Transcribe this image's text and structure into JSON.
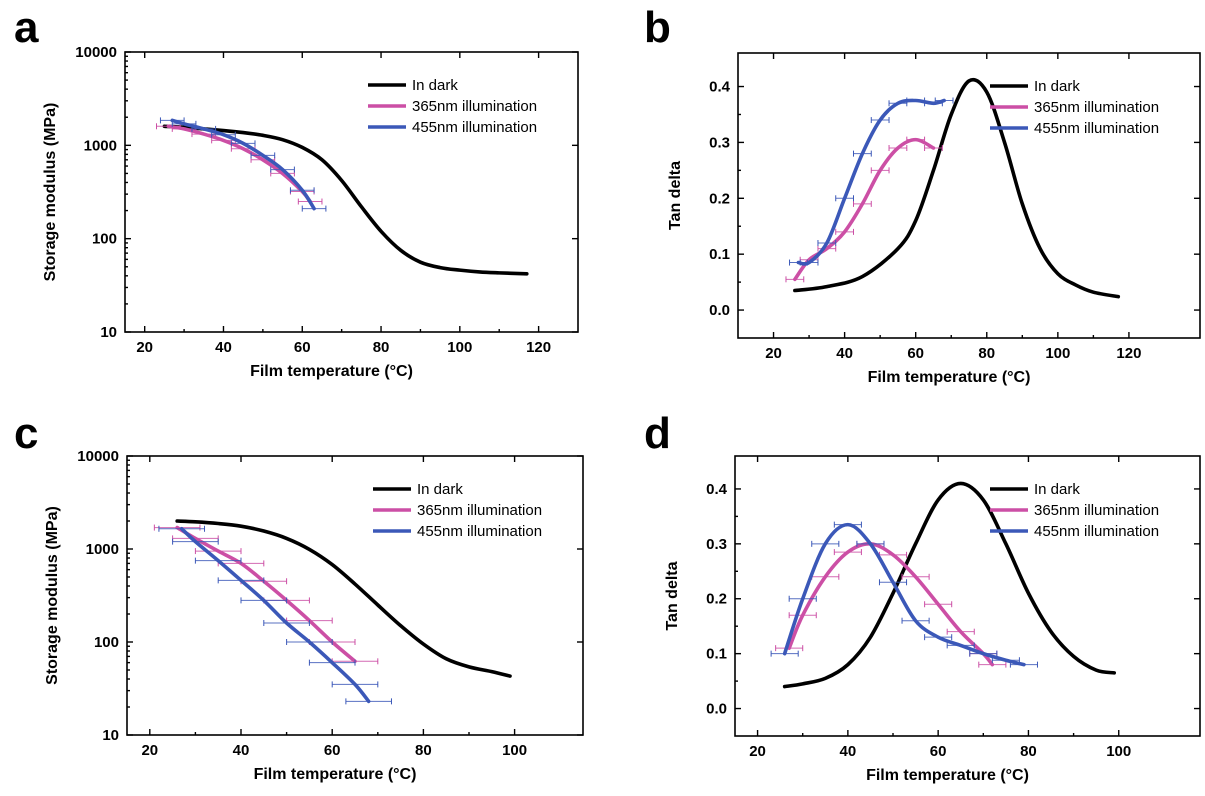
{
  "colors": {
    "dark": "#000000",
    "uv365": "#cc4fa5",
    "blue455": "#3b58b8"
  },
  "chart_data": [
    {
      "panel": "a",
      "type": "line",
      "xlabel": "Film temperature (°C)",
      "ylabel": "Storage modulus (MPa)",
      "xlim": [
        15,
        130
      ],
      "ylim": [
        10,
        10000
      ],
      "yscale": "log",
      "xticks": [
        20,
        40,
        60,
        80,
        100,
        120
      ],
      "yticks": [
        10,
        100,
        1000,
        10000
      ],
      "legend_position": "top-right",
      "series": [
        {
          "name": "In dark",
          "color": "#000000",
          "x": [
            25,
            30,
            35,
            40,
            45,
            50,
            55,
            60,
            65,
            70,
            75,
            80,
            85,
            90,
            95,
            100,
            105,
            110,
            117
          ],
          "y": [
            1600,
            1560,
            1500,
            1440,
            1370,
            1280,
            1150,
            950,
            700,
            420,
            220,
            120,
            75,
            56,
            49,
            46,
            44,
            43,
            42
          ]
        },
        {
          "name": "365nm illumination",
          "color": "#cc4fa5",
          "x": [
            26,
            30,
            35,
            40,
            45,
            50,
            55,
            60,
            62
          ],
          "y": [
            1600,
            1500,
            1320,
            1130,
            920,
            700,
            500,
            320,
            250
          ],
          "xerr": 3
        },
        {
          "name": "455nm illumination",
          "color": "#3b58b8",
          "x": [
            27,
            30,
            35,
            40,
            45,
            50,
            55,
            60,
            63
          ],
          "y": [
            1850,
            1700,
            1500,
            1300,
            1050,
            780,
            550,
            330,
            210
          ],
          "xerr": 3
        }
      ]
    },
    {
      "panel": "b",
      "type": "line",
      "xlabel": "Film temperature (°C)",
      "ylabel": "Tan delta",
      "xlim": [
        10,
        140
      ],
      "ylim": [
        -0.05,
        0.46
      ],
      "xticks": [
        20,
        40,
        60,
        80,
        100,
        120
      ],
      "yticks": [
        0.0,
        0.1,
        0.2,
        0.3,
        0.4
      ],
      "legend_position": "top-right",
      "series": [
        {
          "name": "In dark",
          "color": "#000000",
          "x": [
            26,
            35,
            45,
            55,
            60,
            65,
            70,
            75,
            80,
            85,
            90,
            95,
            100,
            105,
            110,
            117
          ],
          "y": [
            0.035,
            0.042,
            0.06,
            0.11,
            0.16,
            0.25,
            0.35,
            0.41,
            0.39,
            0.3,
            0.19,
            0.11,
            0.065,
            0.045,
            0.032,
            0.024
          ]
        },
        {
          "name": "365nm illumination",
          "color": "#cc4fa5",
          "x": [
            26,
            30,
            35,
            40,
            45,
            50,
            55,
            60,
            65
          ],
          "y": [
            0.055,
            0.09,
            0.11,
            0.14,
            0.19,
            0.25,
            0.29,
            0.305,
            0.29
          ],
          "xerr": 2.5
        },
        {
          "name": "455nm illumination",
          "color": "#3b58b8",
          "x": [
            27,
            30,
            35,
            40,
            45,
            50,
            55,
            60,
            65,
            68
          ],
          "y": [
            0.085,
            0.085,
            0.12,
            0.2,
            0.28,
            0.34,
            0.37,
            0.375,
            0.37,
            0.375
          ],
          "xerr": 2.5
        }
      ]
    },
    {
      "panel": "c",
      "type": "line",
      "xlabel": "Film temperature (°C)",
      "ylabel": "Storage modulus (MPa)",
      "xlim": [
        15,
        115
      ],
      "ylim": [
        10,
        10000
      ],
      "yscale": "log",
      "xticks": [
        20,
        40,
        60,
        80,
        100
      ],
      "yticks": [
        10,
        100,
        1000,
        10000
      ],
      "legend_position": "top-right",
      "series": [
        {
          "name": "In dark",
          "color": "#000000",
          "x": [
            26,
            30,
            35,
            40,
            45,
            50,
            55,
            60,
            65,
            70,
            75,
            80,
            85,
            90,
            95,
            99
          ],
          "y": [
            2000,
            1960,
            1880,
            1760,
            1560,
            1300,
            990,
            680,
            420,
            250,
            150,
            95,
            66,
            54,
            48,
            43
          ]
        },
        {
          "name": "365nm illumination",
          "color": "#cc4fa5",
          "x": [
            26,
            30,
            35,
            40,
            45,
            50,
            55,
            60,
            65
          ],
          "y": [
            1700,
            1300,
            950,
            700,
            450,
            280,
            170,
            100,
            62
          ],
          "xerr": 5
        },
        {
          "name": "455nm illumination",
          "color": "#3b58b8",
          "x": [
            27,
            30,
            35,
            40,
            45,
            50,
            55,
            60,
            65,
            68
          ],
          "y": [
            1650,
            1200,
            750,
            460,
            280,
            160,
            100,
            60,
            35,
            23
          ],
          "xerr": 5
        }
      ]
    },
    {
      "panel": "d",
      "type": "line",
      "xlabel": "Film temperature (°C)",
      "ylabel": "Tan delta",
      "xlim": [
        15,
        118
      ],
      "ylim": [
        -0.05,
        0.46
      ],
      "xticks": [
        20,
        40,
        60,
        80,
        100
      ],
      "yticks": [
        0.0,
        0.1,
        0.2,
        0.3,
        0.4
      ],
      "legend_position": "top-right",
      "series": [
        {
          "name": "In dark",
          "color": "#000000",
          "x": [
            26,
            30,
            35,
            40,
            45,
            50,
            55,
            60,
            65,
            70,
            75,
            80,
            85,
            90,
            95,
            99
          ],
          "y": [
            0.04,
            0.045,
            0.055,
            0.08,
            0.13,
            0.21,
            0.3,
            0.38,
            0.41,
            0.38,
            0.3,
            0.21,
            0.14,
            0.095,
            0.07,
            0.065
          ]
        },
        {
          "name": "365nm illumination",
          "color": "#cc4fa5",
          "x": [
            27,
            30,
            35,
            40,
            45,
            50,
            55,
            60,
            65,
            70,
            72
          ],
          "y": [
            0.11,
            0.17,
            0.24,
            0.285,
            0.3,
            0.28,
            0.24,
            0.19,
            0.14,
            0.1,
            0.08
          ],
          "xerr": 3
        },
        {
          "name": "455nm illumination",
          "color": "#3b58b8",
          "x": [
            26,
            30,
            35,
            40,
            45,
            50,
            55,
            60,
            65,
            70,
            75,
            79
          ],
          "y": [
            0.1,
            0.2,
            0.3,
            0.335,
            0.3,
            0.23,
            0.16,
            0.13,
            0.115,
            0.1,
            0.088,
            0.08
          ],
          "xerr": 3
        }
      ]
    }
  ]
}
